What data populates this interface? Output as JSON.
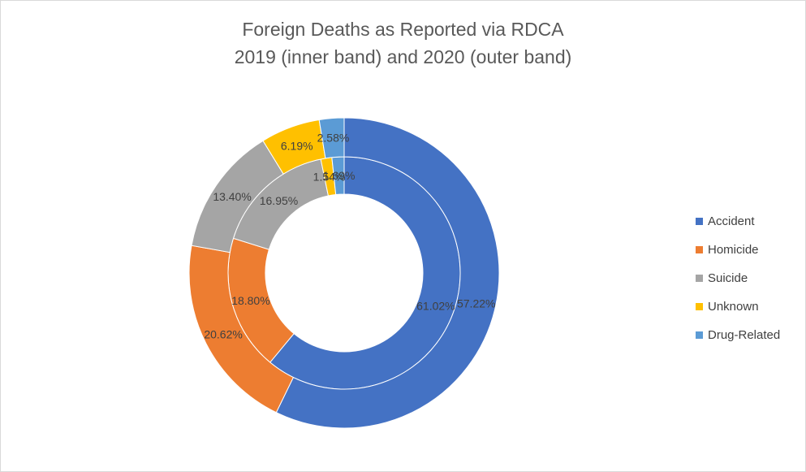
{
  "chart_data": {
    "type": "pie",
    "variant": "doughnut-two-rings",
    "title": "Foreign Deaths as Reported via RDCA",
    "subtitle": "2019 (inner band) and 2020 (outer band)",
    "categories": [
      "Accident",
      "Homicide",
      "Suicide",
      "Unknown",
      "Drug-Related"
    ],
    "colors": [
      "#4472c4",
      "#ed7d31",
      "#a5a5a5",
      "#ffc000",
      "#5b9bd5"
    ],
    "series": [
      {
        "ring": "inner",
        "values": [
          61.02,
          18.8,
          16.95,
          1.54,
          1.69
        ],
        "labels": [
          "61.02%",
          "18.80%",
          "16.95%",
          "1.54%",
          "1.69%"
        ]
      },
      {
        "ring": "outer",
        "values": [
          57.22,
          20.62,
          13.4,
          6.19,
          2.58
        ],
        "labels": [
          "57.22%",
          "20.62%",
          "13.40%",
          "6.19%",
          "2.58%"
        ]
      }
    ],
    "legend_position": "right"
  }
}
